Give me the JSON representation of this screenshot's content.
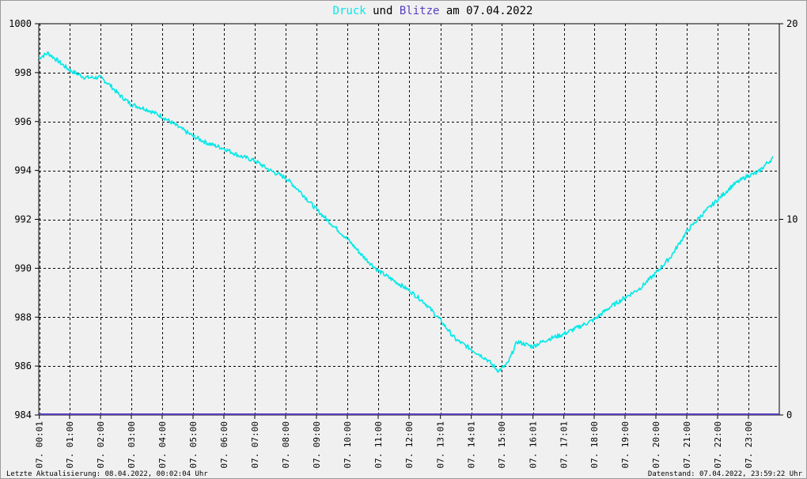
{
  "chart_data": {
    "type": "line",
    "title": {
      "part1": "Druck",
      "part2": " und ",
      "part3": "Blitze",
      "part4": " am 07.04.2022"
    },
    "colors": {
      "druck": "#00e8e8",
      "blitze": "#5a3fc0",
      "title_text": "#000000",
      "grid": "#000000",
      "background": "#f0f0f0"
    },
    "left_axis": {
      "ylim": [
        984,
        1000
      ],
      "ticks": [
        "1000",
        "998",
        "996",
        "994",
        "992",
        "990",
        "988",
        "986",
        "984"
      ]
    },
    "right_axis": {
      "ylim": [
        0,
        20
      ],
      "ticks": [
        "20",
        "10",
        "0"
      ]
    },
    "x_ticks": [
      "07. 00:01",
      "07. 01:00",
      "07. 02:00",
      "07. 03:00",
      "07. 04:00",
      "07. 05:00",
      "07. 06:00",
      "07. 07:00",
      "07. 08:00",
      "07. 09:00",
      "07. 10:00",
      "07. 11:00",
      "07. 12:00",
      "07. 13:01",
      "07. 14:01",
      "07. 15:00",
      "07. 16:01",
      "07. 17:01",
      "07. 18:00",
      "07. 19:00",
      "07. 20:00",
      "07. 21:00",
      "07. 22:00",
      "07. 23:00"
    ],
    "x_hours": [
      0.017,
      1,
      2,
      3,
      4,
      5,
      6,
      7,
      8,
      9,
      10,
      11,
      12,
      13.017,
      14.017,
      15,
      16.017,
      17.017,
      18,
      19,
      20,
      21,
      22,
      23
    ],
    "xlim_hours": [
      0,
      24
    ],
    "grid": true,
    "series": [
      {
        "name": "Druck",
        "x_hours": [
          0,
          0.3,
          0.5,
          1,
          1.5,
          2,
          2.3,
          2.6,
          3,
          3.5,
          4,
          4.5,
          5,
          5.5,
          6,
          6.5,
          7,
          7.5,
          8,
          8.5,
          9,
          9.5,
          10,
          10.5,
          11,
          11.5,
          12,
          12.5,
          13,
          13.5,
          14,
          14.5,
          14.9,
          15.2,
          15.5,
          16,
          16.5,
          17,
          17.5,
          18,
          18.5,
          19,
          19.5,
          20,
          20.5,
          21,
          21.5,
          22,
          22.5,
          23,
          23.3,
          23.6,
          23.8
        ],
        "values": [
          998.6,
          998.8,
          998.6,
          998.1,
          997.8,
          997.8,
          997.5,
          997.1,
          996.7,
          996.5,
          996.2,
          995.8,
          995.4,
          995.1,
          994.9,
          994.6,
          994.4,
          994.0,
          993.7,
          993.1,
          992.4,
          991.8,
          991.2,
          990.5,
          989.9,
          989.5,
          989.1,
          988.6,
          987.9,
          987.1,
          986.7,
          986.3,
          985.8,
          986.1,
          987.0,
          986.8,
          987.1,
          987.3,
          987.6,
          987.9,
          988.4,
          988.8,
          989.2,
          989.8,
          990.5,
          991.5,
          992.2,
          992.8,
          993.4,
          993.8,
          993.9,
          994.3,
          994.5
        ]
      },
      {
        "name": "Blitze",
        "x_hours": [
          0,
          24
        ],
        "values": [
          0,
          0
        ]
      }
    ]
  },
  "footer": {
    "left": "Letzte Aktualisierung: 08.04.2022, 00:02:04 Uhr",
    "right": "Datenstand: 07.04.2022, 23:59:22 Uhr"
  }
}
